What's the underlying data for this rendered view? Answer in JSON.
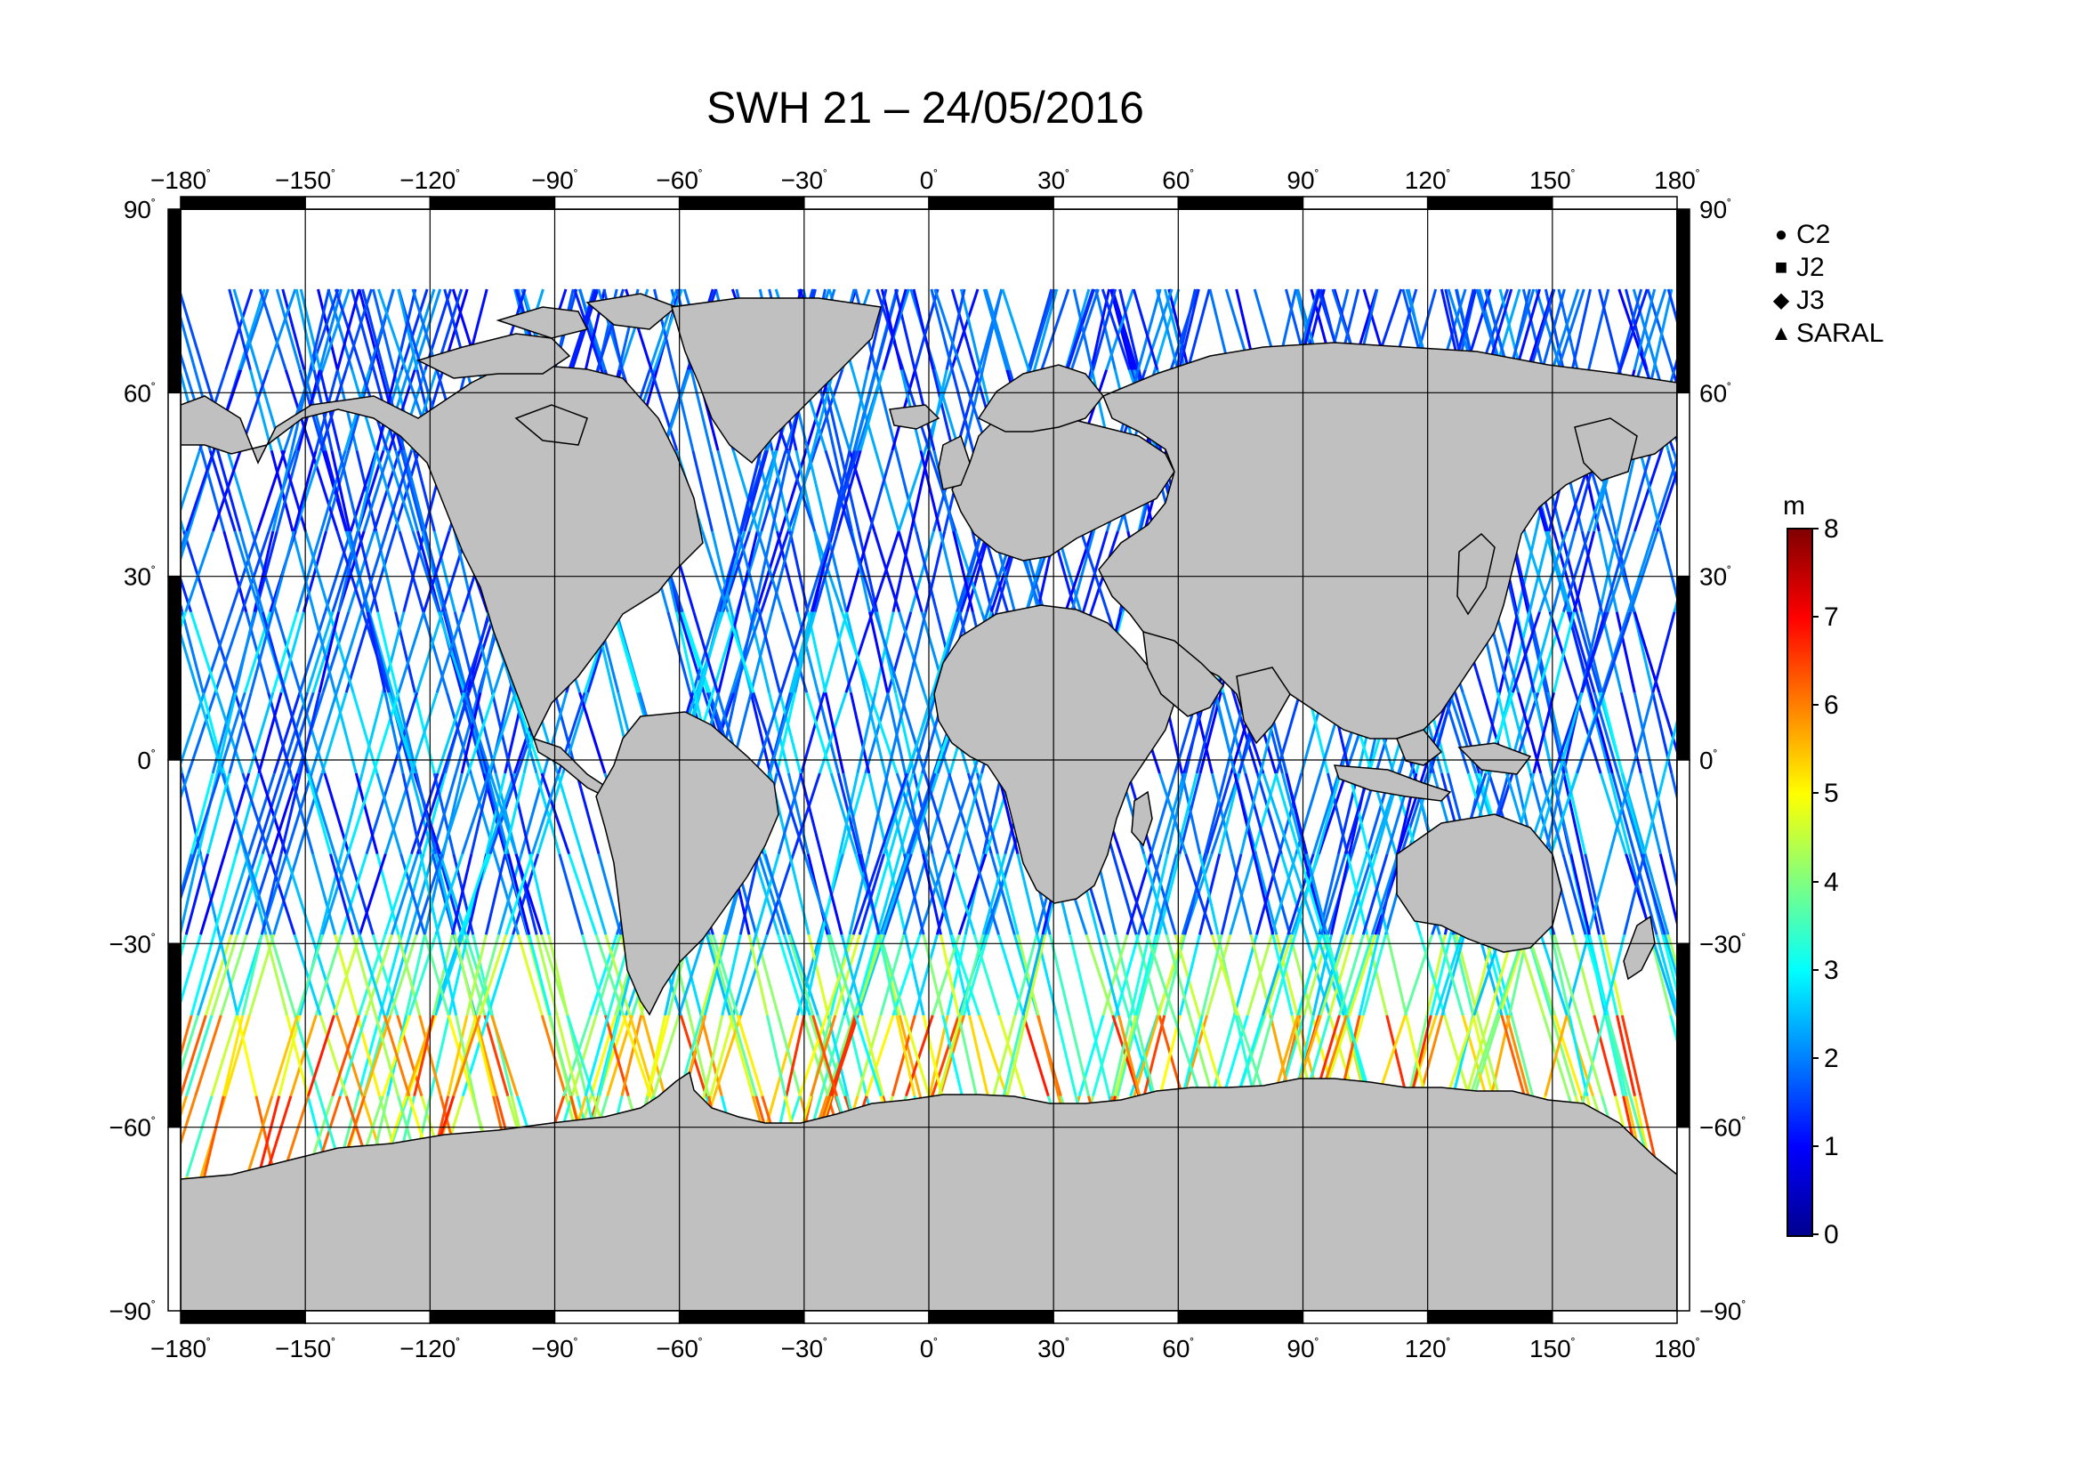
{
  "title": "SWH 21 – 24/05/2016",
  "colors": {
    "land": "#c0c0c0",
    "ocean": "#ffffff",
    "coast": "#000000",
    "colormap": [
      "#00008f",
      "#0000ff",
      "#0080ff",
      "#00ffff",
      "#80ff80",
      "#ffff00",
      "#ff8000",
      "#ff0000",
      "#800000"
    ]
  },
  "x_ticks": [
    "−180",
    "−150",
    "−120",
    "−90",
    "−60",
    "−30",
    "0",
    "30",
    "60",
    "90",
    "120",
    "150",
    "180"
  ],
  "y_ticks": [
    "90",
    "60",
    "30",
    "0",
    "−30",
    "−60",
    "−90"
  ],
  "degree_symbol": "˚",
  "legend": {
    "items": [
      {
        "label": "C2",
        "symbol": "circle-icon",
        "glyph": "●"
      },
      {
        "label": "J2",
        "symbol": "square-icon",
        "glyph": "■"
      },
      {
        "label": "J3",
        "symbol": "diamond-icon",
        "glyph": "◆"
      },
      {
        "label": "SARAL",
        "symbol": "triangle-icon",
        "glyph": "▲"
      }
    ]
  },
  "colorbar": {
    "unit": "m",
    "labels": [
      "8",
      "7",
      "6",
      "5",
      "4",
      "3",
      "2",
      "1",
      "0"
    ],
    "min": 0,
    "max": 8
  }
}
